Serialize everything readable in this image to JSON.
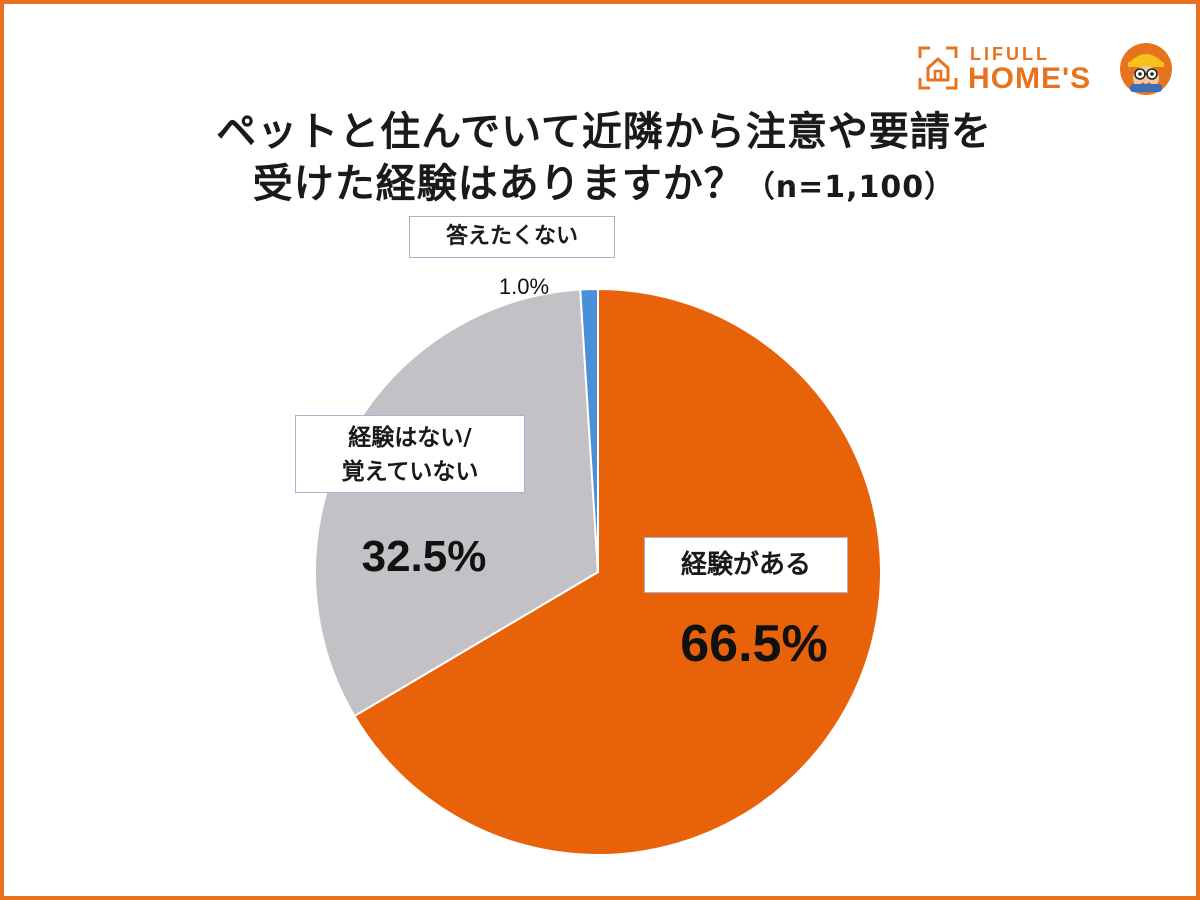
{
  "title": {
    "line1": "ペットと住んでいて近隣から注意や要請を",
    "line2": "受けた経験はありますか？",
    "sample": "（n=1,100）"
  },
  "brand": {
    "line1": "LIFULL",
    "line2": "HOME'S",
    "color": "#e8731f"
  },
  "chart_data": {
    "type": "pie",
    "title": "ペットと住んでいて近隣から注意や要請を受けた経験はありますか？（n=1,100）",
    "start": "top",
    "direction": "clockwise",
    "slices": [
      {
        "label": "経験がある",
        "value": 66.5,
        "value_label": "66.5%",
        "color": "#e8620a"
      },
      {
        "label_line1": "経験はない/",
        "label_line2": "覚えていない",
        "value": 32.5,
        "value_label": "32.5%",
        "color": "#c4c1c6"
      },
      {
        "label": "答えたくない",
        "value": 1.0,
        "value_label": "1.0%",
        "color": "#4a90d9"
      }
    ]
  }
}
